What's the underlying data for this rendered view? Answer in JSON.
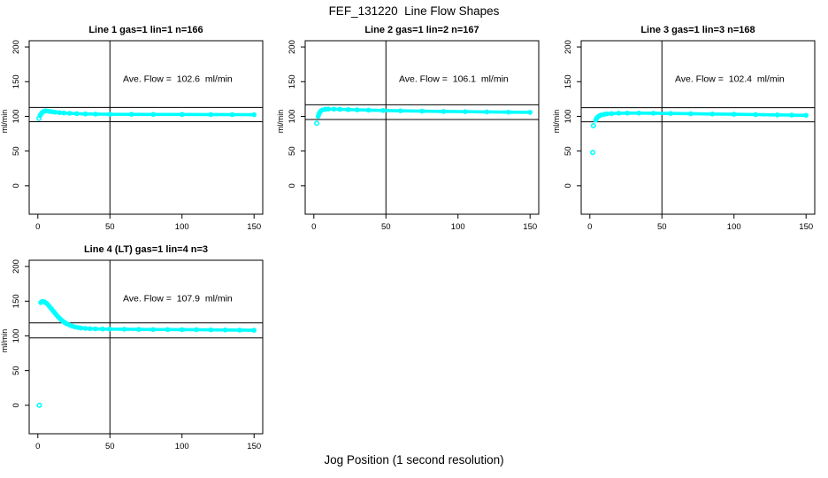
{
  "title": "FEF_131220  Line Flow Shapes",
  "xlabel": "Jog Position (1 second resolution)",
  "colors": {
    "series": "#00FFFF",
    "axis": "#000000",
    "background": "#FFFFFF"
  },
  "chart_data": [
    {
      "type": "scatter",
      "title": "Line 1 gas=1 lin=1 n=166",
      "ylabel": "ml/min",
      "annotation": "Ave. Flow =  102.6  ml/min",
      "ave_flow_ml_min": 102.6,
      "n": 166,
      "xlim": [
        -6,
        156
      ],
      "ylim": [
        -41,
        209
      ],
      "x_ticks": [
        0,
        50,
        100,
        150
      ],
      "y_ticks": [
        0,
        50,
        100,
        150,
        200
      ],
      "vline_x": 50,
      "hlines": [
        112.9,
        92.3
      ],
      "annotation_xy": [
        97,
        150
      ],
      "outliers": [
        [
          0.8,
          97
        ]
      ],
      "trend": [
        [
          1.5,
          101
        ],
        [
          2,
          103
        ],
        [
          3,
          105.5
        ],
        [
          4,
          107
        ],
        [
          5,
          107.8
        ],
        [
          6,
          107.8
        ],
        [
          8,
          107.2
        ],
        [
          10,
          106.6
        ],
        [
          12,
          106
        ],
        [
          15,
          105.4
        ],
        [
          18,
          104.9
        ],
        [
          22,
          104.4
        ],
        [
          27,
          103.9
        ],
        [
          33,
          103.5
        ],
        [
          40,
          103.2
        ],
        [
          50,
          103
        ],
        [
          65,
          102.9
        ],
        [
          80,
          102.8
        ],
        [
          100,
          102.7
        ],
        [
          120,
          102.6
        ],
        [
          135,
          102.5
        ],
        [
          150,
          102.4
        ]
      ]
    },
    {
      "type": "scatter",
      "title": "Line 2 gas=1 lin=2 n=167",
      "ylabel": "ml/min",
      "annotation": "Ave. Flow =  106.1  ml/min",
      "ave_flow_ml_min": 106.1,
      "n": 167,
      "xlim": [
        -6,
        156
      ],
      "ylim": [
        -41,
        209
      ],
      "x_ticks": [
        0,
        50,
        100,
        150
      ],
      "y_ticks": [
        0,
        50,
        100,
        150,
        200
      ],
      "vline_x": 50,
      "hlines": [
        116.7,
        95.5
      ],
      "annotation_xy": [
        97,
        150
      ],
      "outliers": [
        [
          2,
          90
        ]
      ],
      "trend": [
        [
          3,
          100
        ],
        [
          3.5,
          103
        ],
        [
          4,
          105.5
        ],
        [
          5,
          108
        ],
        [
          6,
          109.3
        ],
        [
          8,
          110.2
        ],
        [
          10,
          110.5
        ],
        [
          14,
          110.4
        ],
        [
          18,
          110.2
        ],
        [
          24,
          109.8
        ],
        [
          30,
          109.4
        ],
        [
          38,
          109
        ],
        [
          48,
          108.5
        ],
        [
          60,
          108
        ],
        [
          75,
          107.5
        ],
        [
          90,
          107.1
        ],
        [
          105,
          106.8
        ],
        [
          120,
          106.4
        ],
        [
          135,
          106.1
        ],
        [
          150,
          105.8
        ]
      ]
    },
    {
      "type": "scatter",
      "title": "Line 3 gas=1 lin=3 n=168",
      "ylabel": "ml/min",
      "annotation": "Ave. Flow =  102.4  ml/min",
      "ave_flow_ml_min": 102.4,
      "n": 168,
      "xlim": [
        -6,
        156
      ],
      "ylim": [
        -41,
        209
      ],
      "x_ticks": [
        0,
        50,
        100,
        150
      ],
      "y_ticks": [
        0,
        50,
        100,
        150,
        200
      ],
      "vline_x": 50,
      "hlines": [
        112.6,
        92.2
      ],
      "annotation_xy": [
        97,
        150
      ],
      "outliers": [
        [
          2,
          48
        ],
        [
          2.5,
          86.5
        ]
      ],
      "trend": [
        [
          4,
          94.5
        ],
        [
          4.5,
          96.5
        ],
        [
          5,
          98
        ],
        [
          6,
          100
        ],
        [
          7,
          101.2
        ],
        [
          8,
          102
        ],
        [
          10,
          103
        ],
        [
          12,
          103.6
        ],
        [
          15,
          104.1
        ],
        [
          20,
          104.5
        ],
        [
          26,
          104.7
        ],
        [
          34,
          104.7
        ],
        [
          44,
          104.5
        ],
        [
          56,
          104.2
        ],
        [
          70,
          103.8
        ],
        [
          85,
          103.4
        ],
        [
          100,
          103
        ],
        [
          115,
          102.6
        ],
        [
          130,
          102.1
        ],
        [
          140,
          101.8
        ],
        [
          150,
          101.5
        ]
      ]
    },
    {
      "type": "scatter",
      "title": "Line 4 (LT) gas=1 lin=4 n=3",
      "ylabel": "ml/min",
      "annotation": "Ave. Flow =  107.9  ml/min",
      "ave_flow_ml_min": 107.9,
      "n": 3,
      "xlim": [
        -6,
        156
      ],
      "ylim": [
        -41,
        209
      ],
      "x_ticks": [
        0,
        50,
        100,
        150
      ],
      "y_ticks": [
        0,
        50,
        100,
        150,
        200
      ],
      "vline_x": 50,
      "hlines": [
        118.7,
        97.1
      ],
      "annotation_xy": [
        97,
        150
      ],
      "outliers": [
        [
          1,
          0
        ]
      ],
      "trend": [
        [
          2,
          148
        ],
        [
          2.5,
          149
        ],
        [
          3,
          149.5
        ],
        [
          4,
          149.5
        ],
        [
          5,
          148.5
        ],
        [
          6,
          147
        ],
        [
          7,
          145
        ],
        [
          8,
          142.5
        ],
        [
          9,
          140
        ],
        [
          10,
          137.5
        ],
        [
          11,
          135
        ],
        [
          12,
          132.5
        ],
        [
          13,
          130
        ],
        [
          14,
          127.5
        ],
        [
          15,
          125.5
        ],
        [
          16,
          123.5
        ],
        [
          17,
          121.8
        ],
        [
          18,
          120.2
        ],
        [
          19,
          118.8
        ],
        [
          20,
          117.5
        ],
        [
          22,
          115.5
        ],
        [
          24,
          114
        ],
        [
          26,
          112.8
        ],
        [
          28,
          112
        ],
        [
          30,
          111.4
        ],
        [
          33,
          110.8
        ],
        [
          36,
          110.4
        ],
        [
          40,
          110.1
        ],
        [
          45,
          109.9
        ],
        [
          50,
          109.8
        ],
        [
          60,
          109.6
        ],
        [
          70,
          109.4
        ],
        [
          80,
          109.2
        ],
        [
          90,
          109.1
        ],
        [
          100,
          109
        ],
        [
          110,
          108.9
        ],
        [
          120,
          108.7
        ],
        [
          130,
          108.5
        ],
        [
          140,
          108.3
        ],
        [
          150,
          108.1
        ]
      ]
    }
  ]
}
